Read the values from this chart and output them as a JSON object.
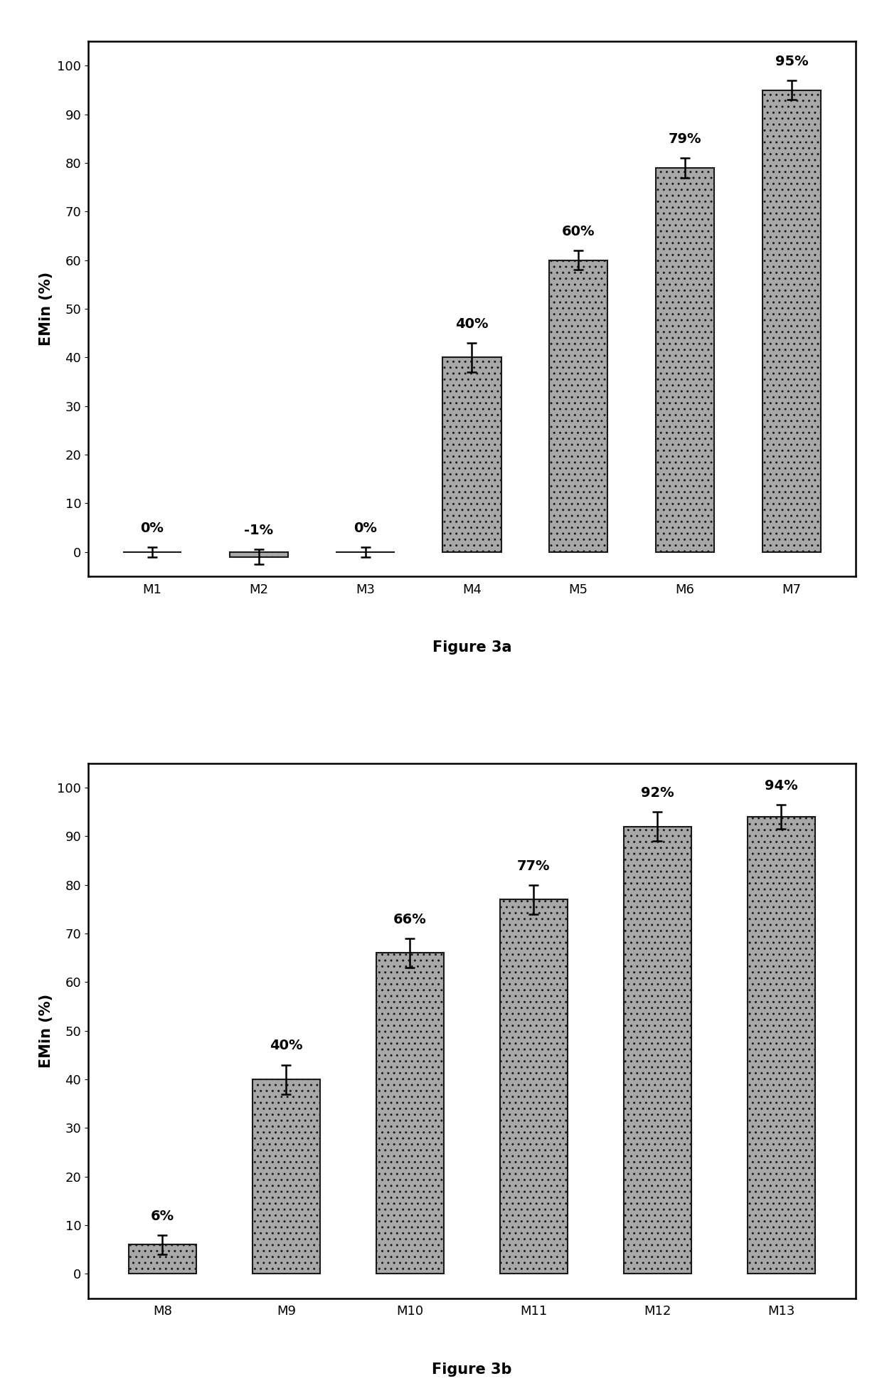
{
  "fig3a": {
    "categories": [
      "M1",
      "M2",
      "M3",
      "M4",
      "M5",
      "M6",
      "M7"
    ],
    "values": [
      0,
      -1,
      0,
      40,
      60,
      79,
      95
    ],
    "errors": [
      1.0,
      1.5,
      1.0,
      3.0,
      2.0,
      2.0,
      2.0
    ],
    "labels": [
      "0%",
      "-1%",
      "0%",
      "40%",
      "60%",
      "79%",
      "95%"
    ],
    "ylabel": "EMin (%)",
    "ylim": [
      -5,
      105
    ],
    "title": "Figure 3a",
    "bar_color": "#a8a8a8",
    "bar_edgecolor": "#1a1a1a"
  },
  "fig3b": {
    "categories": [
      "M8",
      "M9",
      "M10",
      "M11",
      "M12",
      "M13"
    ],
    "values": [
      6,
      40,
      66,
      77,
      92,
      94
    ],
    "errors": [
      2.0,
      3.0,
      3.0,
      3.0,
      3.0,
      2.5
    ],
    "labels": [
      "6%",
      "40%",
      "66%",
      "77%",
      "92%",
      "94%"
    ],
    "ylabel": "EMin (%)",
    "ylim": [
      -5,
      105
    ],
    "title": "Figure 3b",
    "bar_color": "#a8a8a8",
    "bar_edgecolor": "#1a1a1a"
  },
  "background_color": "#ffffff",
  "label_fontsize": 14,
  "tick_fontsize": 13,
  "title_fontsize": 15,
  "ylabel_fontsize": 15,
  "bar_width": 0.55
}
